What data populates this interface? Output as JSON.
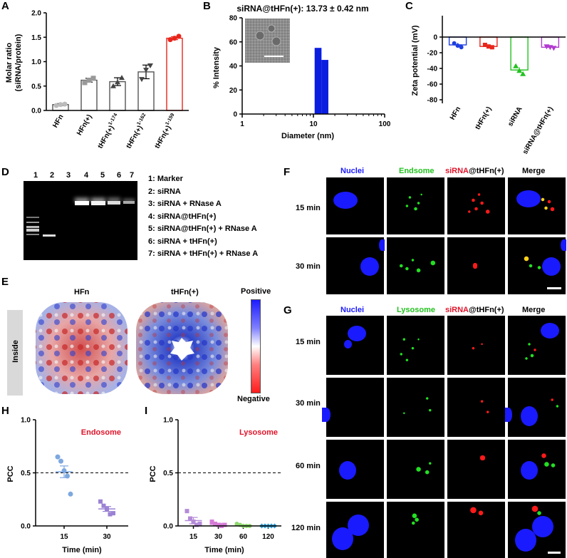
{
  "panels": {
    "A": {
      "letter": "A",
      "ylabel_line1": "Molar ratio",
      "ylabel_line2": "(siRNA/protein)",
      "yticks": [
        "0.0",
        "0.5",
        "1.0",
        "1.5",
        "2.0"
      ],
      "xlabels": [
        {
          "base": "HFn",
          "sup": ""
        },
        {
          "base": "HFn(+)",
          "sup": ""
        },
        {
          "base": "tHFn(+)",
          "sup": "1-174"
        },
        {
          "base": "tHFn(+)",
          "sup": "1-162"
        },
        {
          "base": "tHFn(+)",
          "sup": "1-159"
        }
      ]
    },
    "B": {
      "letter": "B",
      "title": "siRNA@tHFn(+): 13.73 ± 0.42 nm",
      "ylabel": "% Intensity",
      "xlabel": "Diameter (nm)",
      "yticks": [
        "0",
        "20",
        "40",
        "60",
        "80"
      ],
      "xticks": [
        "1",
        "10",
        "100"
      ]
    },
    "C": {
      "letter": "C",
      "ylabel": "Zeta potential (mV)",
      "yticks": [
        "0",
        "-20",
        "-40",
        "-60",
        "-80"
      ],
      "xlabels": [
        "HFn",
        "tHFn(+)",
        "siRNA",
        "siRNA@tHFn(+)"
      ]
    },
    "D": {
      "letter": "D",
      "lanes": [
        "1",
        "2",
        "3",
        "4",
        "5",
        "6",
        "7"
      ],
      "legend": [
        "1: Marker",
        "2: siRNA",
        "3: siRNA + RNase A",
        "4: siRNA@tHFn(+)",
        "5: siRNA@tHFn(+) + RNase A",
        "6: siRNA + tHFn(+)",
        "7: siRNA + tHFn(+) + RNase A"
      ]
    },
    "E": {
      "letter": "E",
      "label_left": "HFn",
      "label_right": "tHFn(+)",
      "side_label": "Inside",
      "scale_top": "Positive",
      "scale_bottom": "Negative"
    },
    "F": {
      "letter": "F",
      "headers": {
        "nuclei": "Nuclei",
        "marker": "Endsome",
        "sirna_prefix": "siRNA",
        "sirna_suffix": "@tHFn(+)",
        "merge": "Merge"
      },
      "rows": [
        "15 min",
        "30 min"
      ]
    },
    "G": {
      "letter": "G",
      "headers": {
        "nuclei": "Nuclei",
        "marker": "Lysosome",
        "sirna_prefix": "siRNA",
        "sirna_suffix": "@tHFn(+)",
        "merge": "Merge"
      },
      "rows": [
        "15 min",
        "30 min",
        "60 min",
        "120 min"
      ]
    },
    "H": {
      "letter": "H",
      "title": "Endosome",
      "ylabel": "PCC",
      "xlabel": "Time (min)",
      "yticks": [
        "0.0",
        "0.5",
        "1.0"
      ],
      "xticks": [
        "15",
        "30"
      ]
    },
    "I": {
      "letter": "I",
      "title": "Lysosome",
      "ylabel": "PCC",
      "xlabel": "Time (min)",
      "yticks": [
        "0.0",
        "0.5",
        "1.0"
      ],
      "xticks": [
        "15",
        "30",
        "60",
        "120"
      ]
    }
  },
  "colors": {
    "blue": "#1f3fe0",
    "red": "#e8261c",
    "green": "#22c21f",
    "purple": "#b23ad0",
    "dark_red_text": "#e0142a",
    "nucleus": "#1a1aff",
    "green_fluor": "#22e022",
    "red_fluor": "#ff1a1a"
  },
  "chart_data": [
    {
      "id": "A",
      "type": "bar",
      "categories": [
        "HFn",
        "HFn(+)",
        "tHFn(+)1-174",
        "tHFn(+)1-162",
        "tHFn(+)1-159"
      ],
      "values": [
        0.12,
        0.62,
        0.59,
        0.79,
        1.48
      ],
      "errors": [
        0.02,
        0.04,
        0.08,
        0.14,
        0.03
      ],
      "points": [
        [
          0.1,
          0.12,
          0.13
        ],
        [
          0.57,
          0.62,
          0.66
        ],
        [
          0.5,
          0.58,
          0.67
        ],
        [
          0.64,
          0.83,
          0.92
        ],
        [
          1.45,
          1.48,
          1.52
        ]
      ],
      "ylabel": "Molar ratio (siRNA/protein)",
      "ylim": [
        0,
        2.0
      ]
    },
    {
      "id": "B",
      "type": "bar",
      "x": [
        11.7,
        14.6
      ],
      "values": [
        55,
        45
      ],
      "xscale": "log",
      "xlim": [
        1,
        100
      ],
      "ylim": [
        0,
        80
      ],
      "title": "siRNA@tHFn(+): 13.73 ± 0.42 nm",
      "xlabel": "Diameter (nm)",
      "ylabel": "% Intensity"
    },
    {
      "id": "C",
      "type": "bar",
      "categories": [
        "HFn",
        "tHFn(+)",
        "siRNA",
        "siRNA@tHFn(+)"
      ],
      "values": [
        -10,
        -12,
        -42,
        -13
      ],
      "errors": [
        2.5,
        1.5,
        3.5,
        1.5
      ],
      "points": [
        [
          -8,
          -11,
          -13
        ],
        [
          -10,
          -12,
          -13
        ],
        [
          -37,
          -43,
          -47
        ],
        [
          -12,
          -13,
          -14
        ]
      ],
      "ylabel": "Zeta potential (mV)",
      "ylim": [
        -80,
        0
      ]
    },
    {
      "id": "H",
      "type": "scatter",
      "categories": [
        "15",
        "30"
      ],
      "points": [
        [
          0.65,
          0.61,
          0.52,
          0.47,
          0.3
        ],
        [
          0.23,
          0.19,
          0.16,
          0.11,
          0.12
        ]
      ],
      "means": [
        0.51,
        0.16
      ],
      "sem": [
        0.055,
        0.023
      ],
      "reference_line": 0.5,
      "title": "Endosome",
      "xlabel": "Time (min)",
      "ylabel": "PCC",
      "ylim": [
        0,
        1.0
      ]
    },
    {
      "id": "I",
      "type": "scatter",
      "categories": [
        "15",
        "30",
        "60",
        "120"
      ],
      "points": [
        [
          0.14,
          0.07,
          0.04,
          0.01,
          0.02
        ],
        [
          0.04,
          0.02,
          0.01,
          0.0,
          0.01
        ],
        [
          0.02,
          0.01,
          0.0,
          0.0,
          0.0
        ],
        [
          0.0,
          0.0,
          0.0,
          0.0,
          0.0
        ]
      ],
      "means": [
        0.05,
        0.015,
        0.006,
        0.0
      ],
      "sem": [
        0.03,
        0.01,
        0.004,
        0.0
      ],
      "reference_line": 0.5,
      "title": "Lysosome",
      "xlabel": "Time (min)",
      "ylabel": "PCC",
      "ylim": [
        0,
        1.0
      ]
    }
  ]
}
